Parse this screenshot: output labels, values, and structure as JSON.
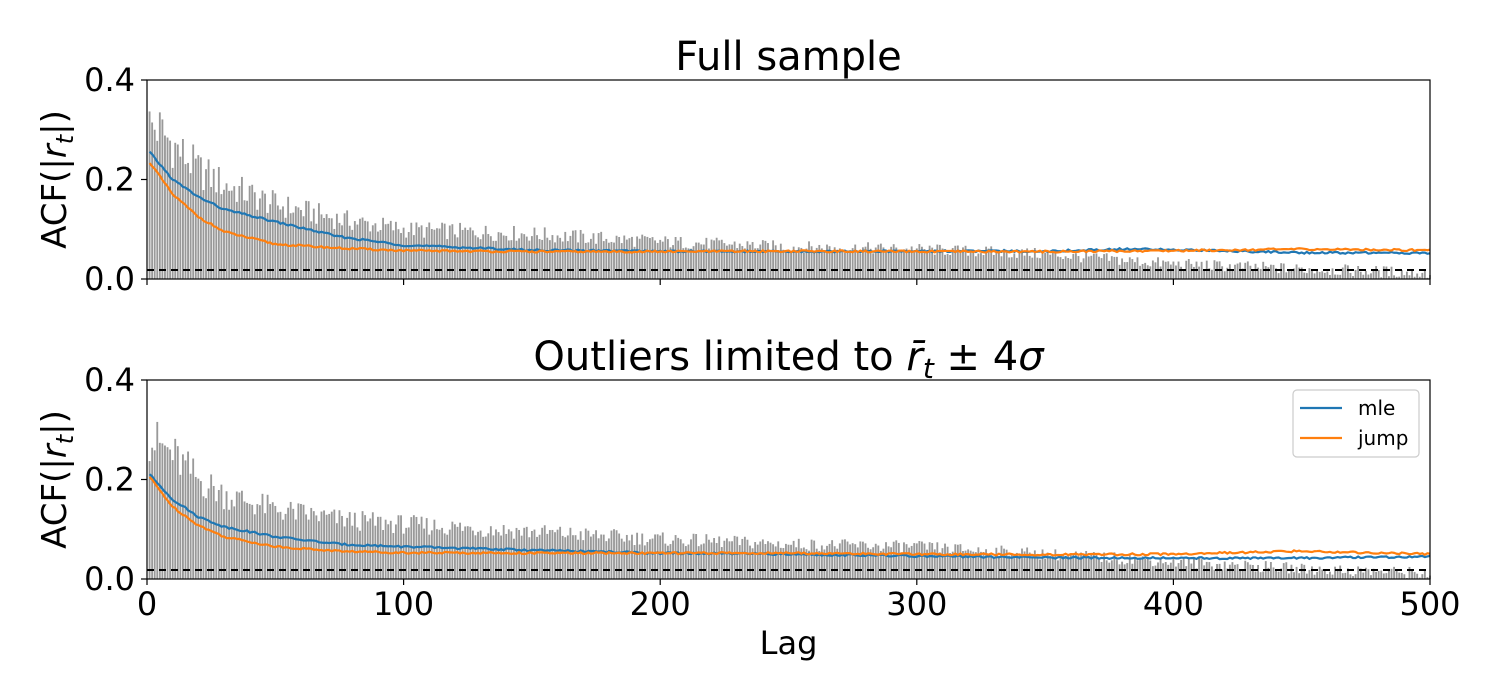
{
  "chart_data": [
    {
      "type": "bar",
      "title": "Full sample",
      "ylabel": "ACF(|r_t|)",
      "xlabel": "",
      "xlim": [
        0,
        500
      ],
      "ylim": [
        0,
        0.4
      ],
      "xticks": [
        0,
        100,
        200,
        300,
        400,
        500
      ],
      "yticks": [
        "0.0",
        "0.2",
        "0.4"
      ],
      "show_xtick_labels": false,
      "bar_color": "#999999",
      "bar_profile": [
        {
          "lag": 1,
          "value": 0.31
        },
        {
          "lag": 5,
          "value": 0.3
        },
        {
          "lag": 10,
          "value": 0.27
        },
        {
          "lag": 20,
          "value": 0.22
        },
        {
          "lag": 30,
          "value": 0.19
        },
        {
          "lag": 50,
          "value": 0.15
        },
        {
          "lag": 75,
          "value": 0.12
        },
        {
          "lag": 100,
          "value": 0.1
        },
        {
          "lag": 150,
          "value": 0.09
        },
        {
          "lag": 200,
          "value": 0.075
        },
        {
          "lag": 250,
          "value": 0.065
        },
        {
          "lag": 300,
          "value": 0.06
        },
        {
          "lag": 350,
          "value": 0.05
        },
        {
          "lag": 400,
          "value": 0.03
        },
        {
          "lag": 450,
          "value": 0.02
        },
        {
          "lag": 500,
          "value": 0.012
        }
      ],
      "confidence_band": 0.018,
      "series": [
        {
          "name": "mle",
          "color": "#1f77b4",
          "points": [
            [
              1,
              0.255
            ],
            [
              10,
              0.2
            ],
            [
              20,
              0.165
            ],
            [
              30,
              0.14
            ],
            [
              50,
              0.115
            ],
            [
              75,
              0.085
            ],
            [
              100,
              0.068
            ],
            [
              150,
              0.058
            ],
            [
              200,
              0.056
            ],
            [
              250,
              0.055
            ],
            [
              300,
              0.056
            ],
            [
              350,
              0.056
            ],
            [
              380,
              0.06
            ],
            [
              400,
              0.059
            ],
            [
              450,
              0.053
            ],
            [
              500,
              0.052
            ]
          ]
        },
        {
          "name": "jump",
          "color": "#ff7f0e",
          "points": [
            [
              1,
              0.235
            ],
            [
              10,
              0.17
            ],
            [
              20,
              0.125
            ],
            [
              30,
              0.095
            ],
            [
              50,
              0.07
            ],
            [
              75,
              0.062
            ],
            [
              100,
              0.057
            ],
            [
              150,
              0.055
            ],
            [
              200,
              0.055
            ],
            [
              250,
              0.056
            ],
            [
              300,
              0.055
            ],
            [
              350,
              0.055
            ],
            [
              400,
              0.057
            ],
            [
              450,
              0.06
            ],
            [
              500,
              0.058
            ]
          ]
        }
      ]
    },
    {
      "type": "bar",
      "title": "Outliers limited to r̄_t ± 4σ",
      "ylabel": "ACF(|r_t|)",
      "xlabel": "Lag",
      "xlim": [
        0,
        500
      ],
      "ylim": [
        0,
        0.4
      ],
      "xticks": [
        0,
        100,
        200,
        300,
        400,
        500
      ],
      "yticks": [
        "0.0",
        "0.2",
        "0.4"
      ],
      "show_xtick_labels": true,
      "bar_color": "#999999",
      "bar_profile": [
        {
          "lag": 1,
          "value": 0.28
        },
        {
          "lag": 5,
          "value": 0.27
        },
        {
          "lag": 10,
          "value": 0.25
        },
        {
          "lag": 20,
          "value": 0.2
        },
        {
          "lag": 30,
          "value": 0.17
        },
        {
          "lag": 50,
          "value": 0.14
        },
        {
          "lag": 75,
          "value": 0.12
        },
        {
          "lag": 100,
          "value": 0.11
        },
        {
          "lag": 150,
          "value": 0.095
        },
        {
          "lag": 200,
          "value": 0.08
        },
        {
          "lag": 250,
          "value": 0.07
        },
        {
          "lag": 300,
          "value": 0.065
        },
        {
          "lag": 350,
          "value": 0.05
        },
        {
          "lag": 400,
          "value": 0.035
        },
        {
          "lag": 450,
          "value": 0.02
        },
        {
          "lag": 500,
          "value": 0.012
        }
      ],
      "confidence_band": 0.018,
      "series": [
        {
          "name": "mle",
          "color": "#1f77b4",
          "points": [
            [
              1,
              0.21
            ],
            [
              10,
              0.16
            ],
            [
              20,
              0.125
            ],
            [
              30,
              0.105
            ],
            [
              50,
              0.085
            ],
            [
              75,
              0.07
            ],
            [
              100,
              0.065
            ],
            [
              150,
              0.058
            ],
            [
              200,
              0.052
            ],
            [
              250,
              0.05
            ],
            [
              300,
              0.046
            ],
            [
              350,
              0.043
            ],
            [
              400,
              0.042
            ],
            [
              450,
              0.042
            ],
            [
              500,
              0.045
            ]
          ]
        },
        {
          "name": "jump",
          "color": "#ff7f0e",
          "points": [
            [
              1,
              0.205
            ],
            [
              10,
              0.145
            ],
            [
              20,
              0.108
            ],
            [
              30,
              0.085
            ],
            [
              50,
              0.065
            ],
            [
              75,
              0.056
            ],
            [
              100,
              0.053
            ],
            [
              150,
              0.052
            ],
            [
              200,
              0.052
            ],
            [
              250,
              0.052
            ],
            [
              300,
              0.05
            ],
            [
              350,
              0.049
            ],
            [
              400,
              0.05
            ],
            [
              450,
              0.056
            ],
            [
              500,
              0.05
            ]
          ]
        }
      ],
      "legend": {
        "position": "upper-right",
        "entries": [
          "mle",
          "jump"
        ]
      }
    }
  ]
}
